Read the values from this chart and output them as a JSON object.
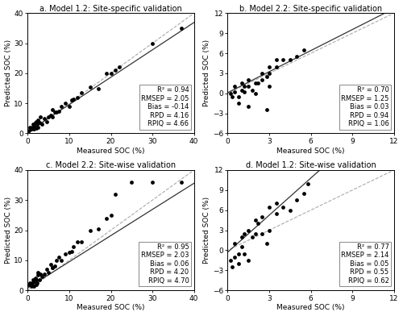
{
  "panels": [
    {
      "label": "a. Model 1.2: Site-specific validation",
      "xlim": [
        0,
        40
      ],
      "ylim": [
        0,
        40
      ],
      "xticks": [
        0,
        10,
        20,
        30,
        40
      ],
      "yticks": [
        0,
        10,
        20,
        30,
        40
      ],
      "xlabel": "Measured SOC (%)",
      "ylabel": "Predicted SOC (%)",
      "stats": "R² = 0.94\nRMSEP = 2.05\nBias = -0.14\nRPD = 4.16\nRPIQ = 4.66",
      "reg_line": [
        0.91,
        0.5
      ],
      "scatter_x": [
        0.4,
        0.6,
        0.8,
        1.0,
        1.2,
        1.5,
        1.5,
        1.8,
        2.0,
        2.0,
        2.2,
        2.5,
        2.5,
        2.8,
        3.0,
        3.5,
        4.0,
        4.5,
        5.0,
        5.5,
        6.0,
        6.0,
        6.5,
        7.0,
        7.5,
        8.0,
        9.0,
        10.0,
        10.5,
        11.0,
        12.0,
        13.0,
        15.0,
        17.0,
        19.0,
        20.0,
        21.0,
        22.0,
        30.0,
        37.0
      ],
      "scatter_y": [
        1.0,
        2.0,
        1.5,
        2.0,
        3.0,
        1.5,
        2.5,
        3.5,
        1.8,
        4.0,
        3.0,
        2.0,
        4.5,
        3.5,
        5.5,
        3.0,
        5.0,
        4.0,
        5.5,
        6.0,
        5.5,
        8.0,
        7.0,
        7.0,
        7.5,
        9.0,
        10.0,
        9.0,
        11.0,
        11.5,
        12.0,
        13.5,
        15.5,
        15.0,
        20.0,
        20.0,
        21.0,
        22.0,
        30.0,
        35.0
      ]
    },
    {
      "label": "b. Model 2.2: Site-specific validation",
      "xlim": [
        0,
        12
      ],
      "ylim": [
        -6,
        12
      ],
      "xticks": [
        0,
        3,
        6,
        9,
        12
      ],
      "yticks": [
        -6,
        -3,
        0,
        3,
        6,
        9,
        12
      ],
      "xlabel": "Measured SOC (%)",
      "ylabel": "Predicted SOC (%)",
      "stats": "R² = 0.70\nRMSEP = 1.25\nBias = 0.03\nRPD = 0.94\nRPIQ = 1.06",
      "reg_line": [
        1.05,
        0.1
      ],
      "scatter_x": [
        0.2,
        0.3,
        0.5,
        0.5,
        0.8,
        0.8,
        1.0,
        1.0,
        1.2,
        1.2,
        1.5,
        1.5,
        1.5,
        1.8,
        2.0,
        2.0,
        2.2,
        2.5,
        2.5,
        2.8,
        2.8,
        3.0,
        3.0,
        3.0,
        3.5,
        3.5,
        4.0,
        4.5,
        5.0,
        5.5
      ],
      "scatter_y": [
        0.0,
        -0.5,
        0.2,
        1.0,
        -1.5,
        -0.5,
        0.5,
        1.5,
        0.2,
        1.0,
        -2.0,
        1.0,
        2.0,
        0.5,
        1.5,
        0.0,
        1.5,
        2.0,
        3.0,
        -2.5,
        2.5,
        1.0,
        3.0,
        4.0,
        4.0,
        5.0,
        5.0,
        5.0,
        5.5,
        6.5
      ]
    },
    {
      "label": "c. Model 2.2: Site-wise validation",
      "xlim": [
        0,
        40
      ],
      "ylim": [
        0,
        40
      ],
      "xticks": [
        0,
        10,
        20,
        30,
        40
      ],
      "yticks": [
        0,
        10,
        20,
        30,
        40
      ],
      "xlabel": "Measured SOC (%)",
      "ylabel": "Predicted SOC (%)",
      "stats": "R² = 0.95\nRMSEP = 2.03\nBias = 0.06\nRPD = 4.20\nRPIQ = 4.70",
      "reg_line": [
        0.87,
        0.8
      ],
      "scatter_x": [
        0.4,
        0.6,
        0.8,
        1.0,
        1.2,
        1.5,
        1.5,
        1.8,
        2.0,
        2.0,
        2.2,
        2.5,
        2.5,
        2.8,
        3.0,
        3.5,
        4.0,
        4.5,
        5.0,
        5.5,
        6.0,
        6.0,
        6.5,
        7.0,
        7.5,
        8.0,
        9.0,
        10.0,
        10.5,
        11.0,
        12.0,
        13.0,
        15.0,
        17.0,
        19.0,
        20.0,
        21.0,
        25.0,
        30.0,
        37.0
      ],
      "scatter_y": [
        2.0,
        2.5,
        1.5,
        2.5,
        3.5,
        1.5,
        3.0,
        4.0,
        2.0,
        3.5,
        2.5,
        5.0,
        6.0,
        3.5,
        5.5,
        4.5,
        5.5,
        7.0,
        6.0,
        8.5,
        7.5,
        7.5,
        8.0,
        10.0,
        11.0,
        10.0,
        12.0,
        12.5,
        13.0,
        14.5,
        16.0,
        16.0,
        20.0,
        20.5,
        24.0,
        25.0,
        32.0,
        36.0,
        36.0,
        36.0
      ]
    },
    {
      "label": "d. Model 1.2: Site-wise validation",
      "xlim": [
        0,
        12
      ],
      "ylim": [
        -6,
        12
      ],
      "xticks": [
        0,
        3,
        6,
        9,
        12
      ],
      "yticks": [
        -6,
        -3,
        0,
        3,
        6,
        9,
        12
      ],
      "xlabel": "Measured SOC (%)",
      "ylabel": "Predicted SOC (%)",
      "stats": "R² = 0.77\nRMSEP = 2.14\nBias = 0.05\nRPD = 0.55\nRPIQ = 0.62",
      "reg_line": [
        1.85,
        -0.3
      ],
      "scatter_x": [
        0.2,
        0.3,
        0.5,
        0.5,
        0.8,
        0.8,
        1.0,
        1.0,
        1.2,
        1.2,
        1.5,
        1.5,
        1.8,
        2.0,
        2.0,
        2.2,
        2.5,
        2.5,
        2.8,
        3.0,
        3.0,
        3.5,
        3.5,
        4.0,
        4.5,
        5.0,
        5.5,
        5.8
      ],
      "scatter_y": [
        -1.5,
        -2.5,
        -1.0,
        1.0,
        -2.0,
        -0.5,
        0.5,
        2.0,
        -0.5,
        2.5,
        -1.5,
        3.0,
        2.0,
        2.5,
        4.5,
        4.0,
        2.5,
        5.0,
        1.0,
        3.0,
        6.5,
        5.5,
        7.0,
        6.5,
        6.0,
        7.5,
        8.5,
        10.0
      ]
    }
  ],
  "dot_color": "#000000",
  "dot_size": 12,
  "line_color_1to1": "#aaaaaa",
  "line_color_reg": "#333333",
  "background_color": "#ffffff",
  "font_size": 6.5,
  "title_font_size": 7
}
